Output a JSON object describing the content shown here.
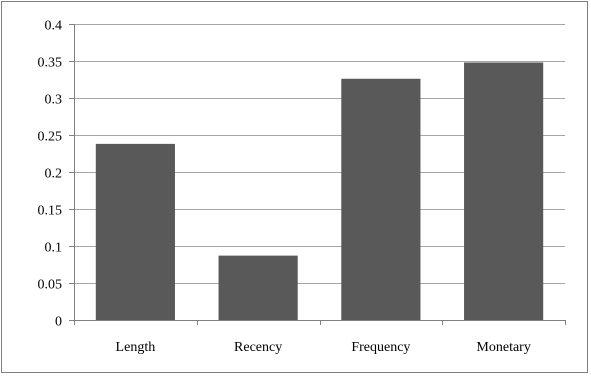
{
  "chart_data": {
    "type": "bar",
    "categories": [
      "Length",
      "Recency",
      "Frequency",
      "Monetary"
    ],
    "values": [
      0.238,
      0.087,
      0.326,
      0.348
    ],
    "y_ticks": [
      "0",
      "0.05",
      "0.1",
      "0.15",
      "0.2",
      "0.25",
      "0.3",
      "0.35",
      "0.4"
    ],
    "ylim": [
      0,
      0.4
    ],
    "grid": true,
    "legend": "none",
    "title": "",
    "xlabel": "",
    "ylabel": "",
    "bar_color": "#595959",
    "grid_color": "#a6a6a6",
    "axis_color": "#808080"
  }
}
